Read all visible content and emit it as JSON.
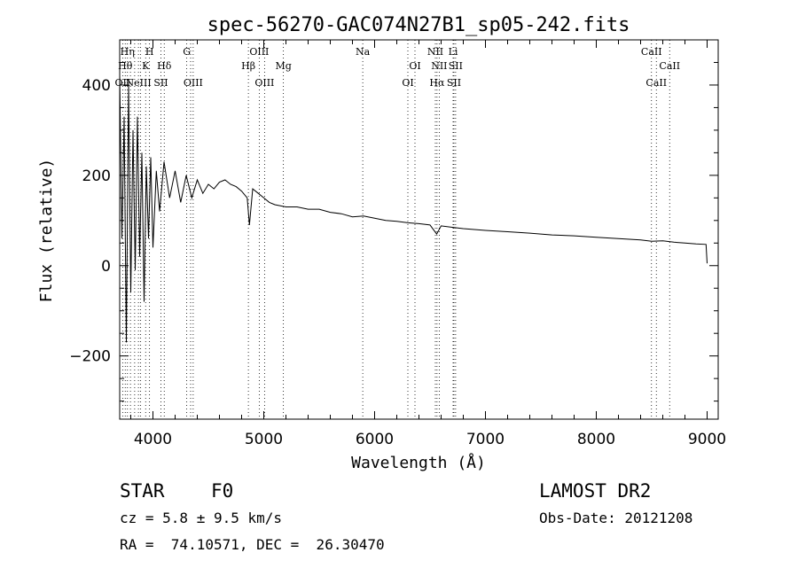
{
  "chart_data": {
    "type": "line",
    "title": "spec-56270-GAC074N27B1_sp05-242.fits",
    "xlabel": "Wavelength (Å)",
    "ylabel": "Flux (relative)",
    "xlim": [
      3700,
      9100
    ],
    "ylim": [
      -340,
      500
    ],
    "x_ticks": [
      4000,
      5000,
      6000,
      7000,
      8000,
      9000
    ],
    "x_tick_labels": [
      "4000",
      "5000",
      "6000",
      "7000",
      "8000",
      "9000"
    ],
    "y_ticks": [
      -200,
      0,
      200,
      400
    ],
    "y_tick_labels": [
      "−200",
      "0",
      "200",
      "400"
    ],
    "grid": false,
    "series": [
      {
        "x": [
          3700,
          3720,
          3740,
          3760,
          3780,
          3800,
          3820,
          3840,
          3860,
          3880,
          3900,
          3920,
          3940,
          3960,
          3980,
          4000,
          4030,
          4060,
          4100,
          4150,
          4200,
          4250,
          4300,
          4350,
          4400,
          4450,
          4500,
          4550,
          4600,
          4650,
          4700,
          4750,
          4800,
          4850,
          4870,
          4900,
          4950,
          5000,
          5050,
          5100,
          5200,
          5300,
          5400,
          5500,
          5600,
          5700,
          5800,
          5900,
          6000,
          6100,
          6200,
          6300,
          6400,
          6500,
          6560,
          6600,
          6700,
          6800,
          6900,
          7000,
          7200,
          7400,
          7600,
          7800,
          8000,
          8200,
          8400,
          8500,
          8600,
          8700,
          8800,
          8900,
          8990,
          9000
        ],
        "y": [
          420,
          60,
          330,
          -170,
          400,
          -60,
          300,
          -10,
          330,
          20,
          250,
          -80,
          220,
          60,
          240,
          40,
          210,
          120,
          230,
          150,
          210,
          140,
          200,
          150,
          190,
          160,
          180,
          170,
          185,
          190,
          180,
          175,
          165,
          150,
          90,
          170,
          160,
          150,
          140,
          135,
          130,
          130,
          125,
          125,
          118,
          115,
          108,
          110,
          105,
          100,
          98,
          95,
          93,
          90,
          70,
          88,
          85,
          82,
          80,
          78,
          75,
          72,
          68,
          66,
          63,
          60,
          57,
          54,
          55,
          52,
          50,
          48,
          47,
          5
        ]
      }
    ],
    "line_markers": [
      {
        "x": 3727,
        "label": "OII",
        "row": 3
      },
      {
        "x": 3750,
        "label": "Hθ",
        "row": 2
      },
      {
        "x": 3770,
        "label": "Hη",
        "row": 1
      },
      {
        "x": 3797,
        "label": "",
        "row": 0
      },
      {
        "x": 3835,
        "label": "",
        "row": 0
      },
      {
        "x": 3869,
        "label": "NeIII",
        "row": 3
      },
      {
        "x": 3889,
        "label": "",
        "row": 0
      },
      {
        "x": 3934,
        "label": "K",
        "row": 2
      },
      {
        "x": 3969,
        "label": "H",
        "row": 1
      },
      {
        "x": 4072,
        "label": "SII",
        "row": 3
      },
      {
        "x": 4102,
        "label": "Hδ",
        "row": 2
      },
      {
        "x": 4305,
        "label": "G",
        "row": 1
      },
      {
        "x": 4340,
        "label": "",
        "row": 0
      },
      {
        "x": 4363,
        "label": "OIII",
        "row": 3
      },
      {
        "x": 4861,
        "label": "Hβ",
        "row": 2
      },
      {
        "x": 4959,
        "label": "OIII",
        "row": 1
      },
      {
        "x": 5007,
        "label": "OIII",
        "row": 3
      },
      {
        "x": 5177,
        "label": "Mg",
        "row": 2
      },
      {
        "x": 5893,
        "label": "Na",
        "row": 1
      },
      {
        "x": 6300,
        "label": "OI",
        "row": 3
      },
      {
        "x": 6364,
        "label": "OI",
        "row": 2
      },
      {
        "x": 6548,
        "label": "NII",
        "row": 1
      },
      {
        "x": 6563,
        "label": "Hα",
        "row": 3
      },
      {
        "x": 6583,
        "label": "NII",
        "row": 2
      },
      {
        "x": 6708,
        "label": "Li",
        "row": 1
      },
      {
        "x": 6716,
        "label": "SII",
        "row": 3
      },
      {
        "x": 6731,
        "label": "SII",
        "row": 2
      },
      {
        "x": 8498,
        "label": "CaII",
        "row": 1
      },
      {
        "x": 8542,
        "label": "CaII",
        "row": 3
      },
      {
        "x": 8662,
        "label": "CaII",
        "row": 2
      }
    ]
  },
  "info": {
    "class": "STAR",
    "subclass": "F0",
    "survey": "LAMOST DR2",
    "cz": "cz = 5.8 ± 9.5 km/s",
    "obs_date": "Obs-Date: 20121208",
    "coords": "RA =  74.10571, DEC =  26.30470"
  }
}
